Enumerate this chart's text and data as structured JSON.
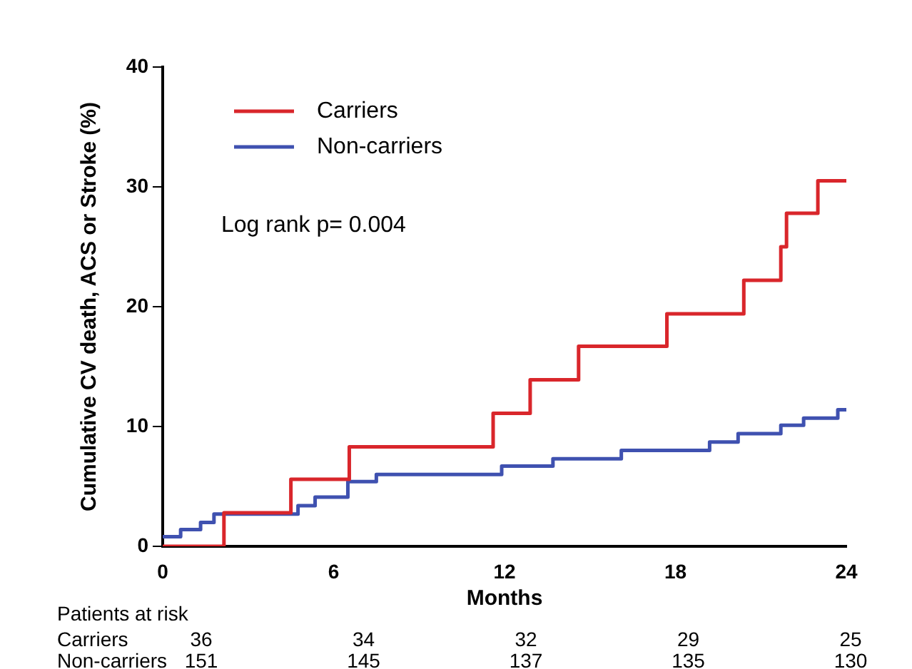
{
  "chart_data": {
    "type": "step",
    "xlabel": "Months",
    "ylabel": "Cumulative CV death, ACS or Stroke (%)",
    "xlim": [
      0,
      24
    ],
    "ylim": [
      0,
      40
    ],
    "xticks": [
      0,
      6,
      12,
      18,
      24
    ],
    "yticks": [
      0,
      10,
      20,
      30,
      40
    ],
    "grid": false,
    "legend": "top left",
    "series": [
      {
        "name": "Carriers",
        "color": "#d9262b",
        "x": [
          0,
          2.15,
          4.5,
          6.55,
          11.6,
          12.9,
          14.6,
          17.7,
          20.4,
          21.7,
          21.9,
          23,
          24
        ],
        "values": [
          0,
          2.8,
          5.6,
          8.3,
          11.1,
          13.9,
          16.7,
          19.4,
          22.2,
          25,
          27.8,
          30.5,
          30.5
        ]
      },
      {
        "name": "Non-carriers",
        "color": "#3f51b0",
        "x": [
          0,
          0.63,
          1.33,
          1.8,
          4.75,
          5.35,
          6.5,
          7.5,
          11.9,
          13.7,
          16.1,
          19.2,
          20.2,
          21.7,
          22.5,
          23.7,
          24
        ],
        "values": [
          0.8,
          1.4,
          2.0,
          2.7,
          3.4,
          4.1,
          5.4,
          6.0,
          6.7,
          7.3,
          8.0,
          8.7,
          9.4,
          10.1,
          10.7,
          11.4,
          11.4
        ]
      }
    ],
    "annotations": [
      "Log rank p= 0.004",
      "Patients at risk",
      "Carriers",
      "Non-carriers",
      "36",
      "34",
      "32",
      "29",
      "25",
      "151",
      "145",
      "137",
      "135",
      "130"
    ]
  }
}
